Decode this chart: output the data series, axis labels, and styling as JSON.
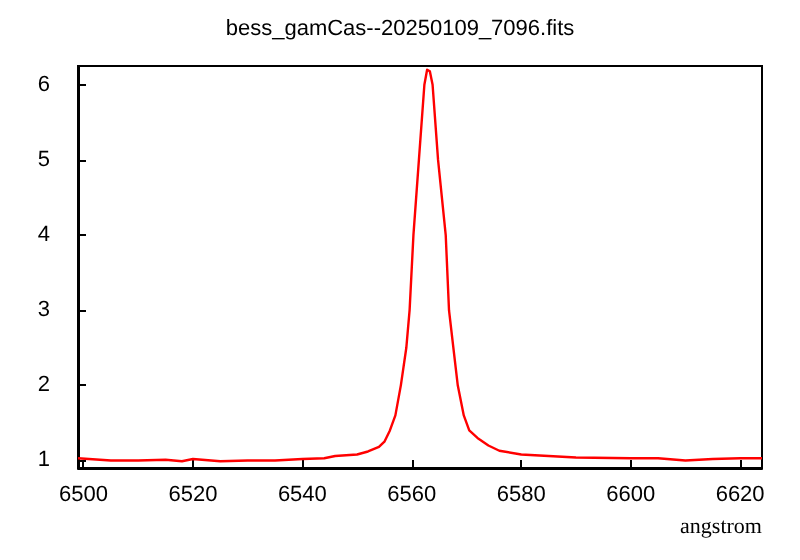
{
  "chart_data": {
    "type": "line",
    "title": "bess_gamCas--20250109_7096.fits",
    "xlabel": "angstrom",
    "x": [
      6499,
      6505,
      6510,
      6515,
      6518,
      6520,
      6525,
      6530,
      6535,
      6540,
      6544,
      6546,
      6550,
      6552,
      6554,
      6555,
      6556,
      6557,
      6558,
      6559,
      6559.6,
      6560.3,
      6561.3,
      6562.3,
      6562.8,
      6563.3,
      6563.8,
      6564.8,
      6566.2,
      6566.8,
      6567.6,
      6568.4,
      6569.5,
      6570.5,
      6572,
      6574,
      6576,
      6580,
      6585,
      6590,
      6600,
      6605,
      6610,
      6615,
      6620,
      6624
    ],
    "series": [
      {
        "color": "#ff0000",
        "values": [
          1.03,
          1.0,
          1.0,
          1.01,
          0.99,
          1.02,
          0.99,
          1.0,
          1.0,
          1.02,
          1.03,
          1.06,
          1.08,
          1.12,
          1.18,
          1.25,
          1.4,
          1.6,
          2.0,
          2.5,
          3.0,
          4.0,
          5.0,
          6.0,
          6.2,
          6.18,
          6.0,
          5.0,
          4.0,
          3.0,
          2.5,
          2.0,
          1.6,
          1.4,
          1.3,
          1.2,
          1.13,
          1.08,
          1.06,
          1.04,
          1.03,
          1.03,
          1.0,
          1.02,
          1.03,
          1.03
        ]
      }
    ],
    "xlim": [
      6499,
      6624
    ],
    "xticks": [
      6500,
      6520,
      6540,
      6560,
      6580,
      6600,
      6620
    ],
    "ylim": [
      0.9,
      6.25
    ],
    "yticks": [
      1,
      2,
      3,
      4,
      5,
      6
    ],
    "grid": false,
    "marker": "none",
    "line_style": "solid"
  }
}
